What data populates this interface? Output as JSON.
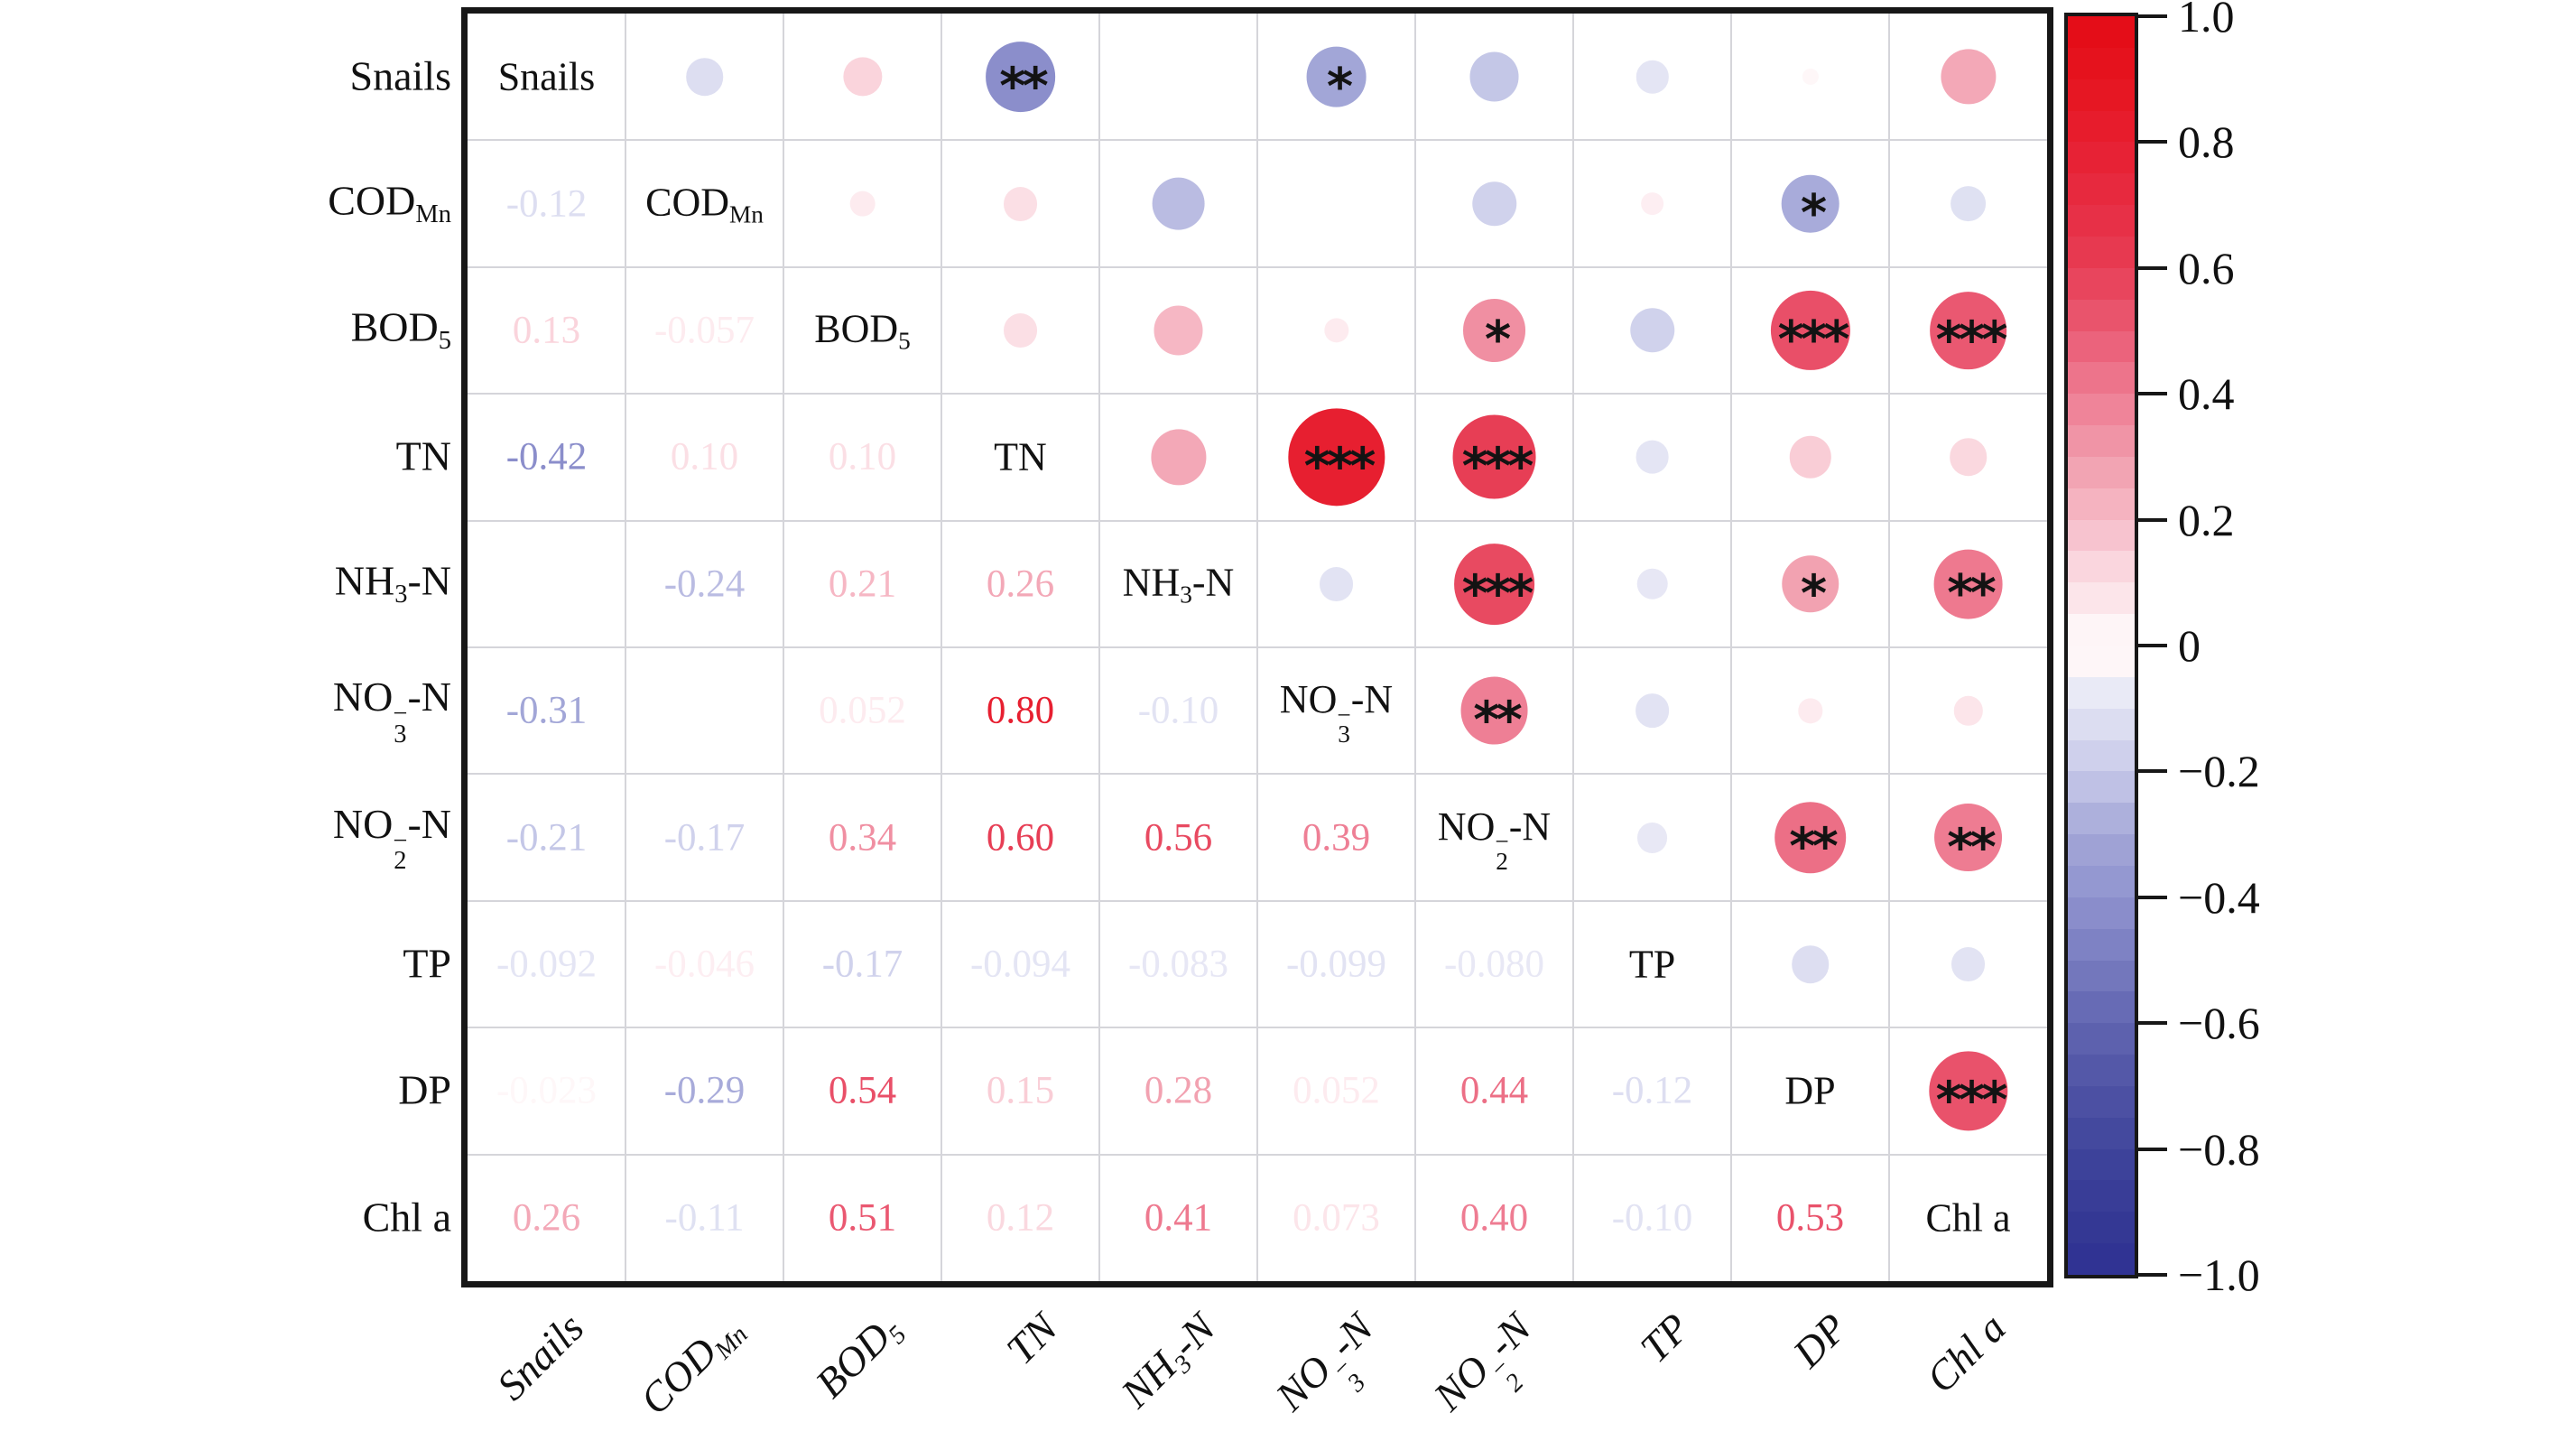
{
  "figure_title": "",
  "chart_data": {
    "type": "heatmap",
    "subtype": "correlation-matrix-corrplot",
    "layout": "lower-triangle-numbers / diagonal-names / upper-triangle-circles",
    "variables": [
      "Snails",
      "CODMn",
      "BOD5",
      "TN",
      "NH3-N",
      "NO3--N",
      "NO2--N",
      "TP",
      "DP",
      "Chl a"
    ],
    "variables_rich": [
      [
        {
          "t": "Snails"
        }
      ],
      [
        {
          "t": "COD"
        },
        {
          "sub": "Mn"
        }
      ],
      [
        {
          "t": "BOD"
        },
        {
          "sub": "5"
        }
      ],
      [
        {
          "t": "TN"
        }
      ],
      [
        {
          "t": "NH"
        },
        {
          "sub": "3"
        },
        {
          "t": "-N"
        }
      ],
      [
        {
          "t": "NO"
        },
        {
          "stack": [
            "−",
            "3"
          ]
        },
        {
          "t": "-N"
        }
      ],
      [
        {
          "t": "NO"
        },
        {
          "stack": [
            "−",
            "2"
          ]
        },
        {
          "t": "-N"
        }
      ],
      [
        {
          "t": "TP"
        }
      ],
      [
        {
          "t": "DP"
        }
      ],
      [
        {
          "t": "Chl a"
        }
      ]
    ],
    "pairs": [
      {
        "row": 2,
        "col": 1,
        "r": -0.12,
        "text": "-0.12",
        "stars": ""
      },
      {
        "row": 3,
        "col": 1,
        "r": 0.13,
        "text": "0.13",
        "stars": ""
      },
      {
        "row": 3,
        "col": 2,
        "r": -0.057,
        "text": "-0.057",
        "stars": ""
      },
      {
        "row": 4,
        "col": 1,
        "r": -0.42,
        "text": "-0.42",
        "stars": "**"
      },
      {
        "row": 4,
        "col": 2,
        "r": 0.1,
        "text": "0.10",
        "stars": ""
      },
      {
        "row": 4,
        "col": 3,
        "r": 0.1,
        "text": "0.10",
        "stars": ""
      },
      {
        "row": 5,
        "col": 1,
        "r": null,
        "text": "",
        "stars": ""
      },
      {
        "row": 5,
        "col": 2,
        "r": -0.24,
        "text": "-0.24",
        "stars": ""
      },
      {
        "row": 5,
        "col": 3,
        "r": 0.21,
        "text": "0.21",
        "stars": ""
      },
      {
        "row": 5,
        "col": 4,
        "r": 0.26,
        "text": "0.26",
        "stars": ""
      },
      {
        "row": 6,
        "col": 1,
        "r": -0.31,
        "text": "-0.31",
        "stars": "*"
      },
      {
        "row": 6,
        "col": 2,
        "r": null,
        "text": "",
        "stars": ""
      },
      {
        "row": 6,
        "col": 3,
        "r": 0.052,
        "text": "0.052",
        "stars": ""
      },
      {
        "row": 6,
        "col": 4,
        "r": 0.8,
        "text": "0.80",
        "stars": "***"
      },
      {
        "row": 6,
        "col": 5,
        "r": -0.1,
        "text": "-0.10",
        "stars": ""
      },
      {
        "row": 7,
        "col": 1,
        "r": -0.21,
        "text": "-0.21",
        "stars": ""
      },
      {
        "row": 7,
        "col": 2,
        "r": -0.17,
        "text": "-0.17",
        "stars": ""
      },
      {
        "row": 7,
        "col": 3,
        "r": 0.34,
        "text": "0.34",
        "stars": "*"
      },
      {
        "row": 7,
        "col": 4,
        "r": 0.6,
        "text": "0.60",
        "stars": "***"
      },
      {
        "row": 7,
        "col": 5,
        "r": 0.56,
        "text": "0.56",
        "stars": "***"
      },
      {
        "row": 7,
        "col": 6,
        "r": 0.39,
        "text": "0.39",
        "stars": "**"
      },
      {
        "row": 8,
        "col": 1,
        "r": -0.092,
        "text": "-0.092",
        "stars": ""
      },
      {
        "row": 8,
        "col": 2,
        "r": -0.046,
        "text": "-0.046",
        "stars": ""
      },
      {
        "row": 8,
        "col": 3,
        "r": -0.17,
        "text": "-0.17",
        "stars": ""
      },
      {
        "row": 8,
        "col": 4,
        "r": -0.094,
        "text": "-0.094",
        "stars": ""
      },
      {
        "row": 8,
        "col": 5,
        "r": -0.083,
        "text": "-0.083",
        "stars": ""
      },
      {
        "row": 8,
        "col": 6,
        "r": -0.099,
        "text": "-0.099",
        "stars": ""
      },
      {
        "row": 8,
        "col": 7,
        "r": -0.08,
        "text": "-0.080",
        "stars": ""
      },
      {
        "row": 9,
        "col": 1,
        "r": -0.023,
        "text": "-0.023",
        "stars": ""
      },
      {
        "row": 9,
        "col": 2,
        "r": -0.29,
        "text": "-0.29",
        "stars": "*"
      },
      {
        "row": 9,
        "col": 3,
        "r": 0.54,
        "text": "0.54",
        "stars": "***"
      },
      {
        "row": 9,
        "col": 4,
        "r": 0.15,
        "text": "0.15",
        "stars": ""
      },
      {
        "row": 9,
        "col": 5,
        "r": 0.28,
        "text": "0.28",
        "stars": "*"
      },
      {
        "row": 9,
        "col": 6,
        "r": 0.052,
        "text": "0.052",
        "stars": ""
      },
      {
        "row": 9,
        "col": 7,
        "r": 0.44,
        "text": "0.44",
        "stars": "**"
      },
      {
        "row": 9,
        "col": 8,
        "r": -0.12,
        "text": "-0.12",
        "stars": ""
      },
      {
        "row": 10,
        "col": 1,
        "r": 0.26,
        "text": "0.26",
        "stars": ""
      },
      {
        "row": 10,
        "col": 2,
        "r": -0.11,
        "text": "-0.11",
        "stars": ""
      },
      {
        "row": 10,
        "col": 3,
        "r": 0.51,
        "text": "0.51",
        "stars": "***"
      },
      {
        "row": 10,
        "col": 4,
        "r": 0.12,
        "text": "0.12",
        "stars": ""
      },
      {
        "row": 10,
        "col": 5,
        "r": 0.41,
        "text": "0.41",
        "stars": "**"
      },
      {
        "row": 10,
        "col": 6,
        "r": 0.073,
        "text": "0.073",
        "stars": ""
      },
      {
        "row": 10,
        "col": 7,
        "r": 0.4,
        "text": "0.40",
        "stars": "**"
      },
      {
        "row": 10,
        "col": 8,
        "r": -0.1,
        "text": "-0.10",
        "stars": ""
      },
      {
        "row": 10,
        "col": 9,
        "r": 0.53,
        "text": "0.53",
        "stars": "***"
      }
    ],
    "colorbar": {
      "min": -1,
      "max": 1,
      "position": "right",
      "segments": 40,
      "tick_values": [
        1.0,
        0.8,
        0.6,
        0.4,
        0.2,
        0,
        -0.2,
        -0.4,
        -0.6,
        -0.8,
        -1.0
      ],
      "tick_labels": [
        "1.0",
        "0.8",
        "0.6",
        "0.4",
        "0.2",
        "0",
        "−0.2",
        "−0.4",
        "−0.6",
        "−0.8",
        "−1.0"
      ]
    }
  },
  "palette": {
    "positive_stops": [
      [
        0,
        "#ffffff"
      ],
      [
        0.05,
        "#fdebef"
      ],
      [
        0.1,
        "#fbdfe5"
      ],
      [
        0.2,
        "#f6bac7"
      ],
      [
        0.3,
        "#f19cac"
      ],
      [
        0.4,
        "#ee7c92"
      ],
      [
        0.5,
        "#ea5b74"
      ],
      [
        0.6,
        "#e73e55"
      ],
      [
        0.7,
        "#e72c42"
      ],
      [
        0.8,
        "#e71f30"
      ],
      [
        0.9,
        "#e5141f"
      ],
      [
        1,
        "#e30b16"
      ]
    ],
    "negative_stops": [
      [
        -1,
        "#2e3192"
      ],
      [
        -0.9,
        "#363a95"
      ],
      [
        -0.8,
        "#40459b"
      ],
      [
        -0.7,
        "#5054a5"
      ],
      [
        -0.6,
        "#6165b1"
      ],
      [
        -0.5,
        "#797dc0"
      ],
      [
        -0.4,
        "#8f92ce"
      ],
      [
        -0.3,
        "#a4a8d8"
      ],
      [
        -0.2,
        "#c8cae9"
      ],
      [
        -0.1,
        "#e2e3f3"
      ],
      [
        -0.05,
        "#f0f0f9"
      ],
      [
        0,
        "#ffffff"
      ]
    ],
    "star_color": "#131313",
    "label_color": "#111111",
    "grid_color": "#d5d5da",
    "border_color": "#171717"
  }
}
